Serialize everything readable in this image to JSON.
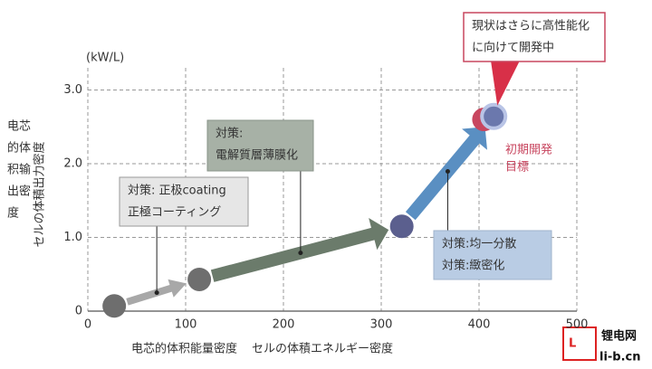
{
  "chart_data": {
    "type": "scatter",
    "unit_label": "(kW/L)",
    "y_label": "セルの体積出力密度",
    "y_label_zh": [
      "电芯",
      "的体",
      "积输",
      "出密",
      "度"
    ],
    "x_label_zh": "电芯的体积能量密度",
    "x_label": "セルの体積エネルギー密度",
    "xlim": [
      0,
      500
    ],
    "xticks": [
      0,
      100,
      200,
      300,
      400,
      500
    ],
    "ylim": [
      0,
      3.3
    ],
    "yticks": [
      0,
      {
        "value": 1,
        "label": "1.0"
      },
      {
        "value": 2,
        "label": "2.0"
      },
      {
        "value": 3,
        "label": "3.0"
      }
    ],
    "grid": true,
    "points": {
      "x": [
        27,
        114,
        321,
        415
      ],
      "values": [
        0.07,
        0.43,
        1.15,
        2.64
      ],
      "colors": [
        "#6e6e6e",
        "#6e6e6e",
        "#5b5f8e",
        "#6b78ad"
      ]
    },
    "target": {
      "x": 405,
      "y": 2.6,
      "color": "#c8465f",
      "label": [
        "初期開発",
        "目標"
      ]
    },
    "annotations": [
      [
        "対策: 正极coating",
        "正極コーティング"
      ],
      [
        "対策:",
        "電解質層薄膜化"
      ],
      [
        "対策:均一分散",
        "対策:緻密化"
      ],
      [
        "現状はさらに高性能化",
        "に向けて開発中"
      ]
    ],
    "watermark": [
      "锂电网",
      "li-b.cn"
    ]
  }
}
